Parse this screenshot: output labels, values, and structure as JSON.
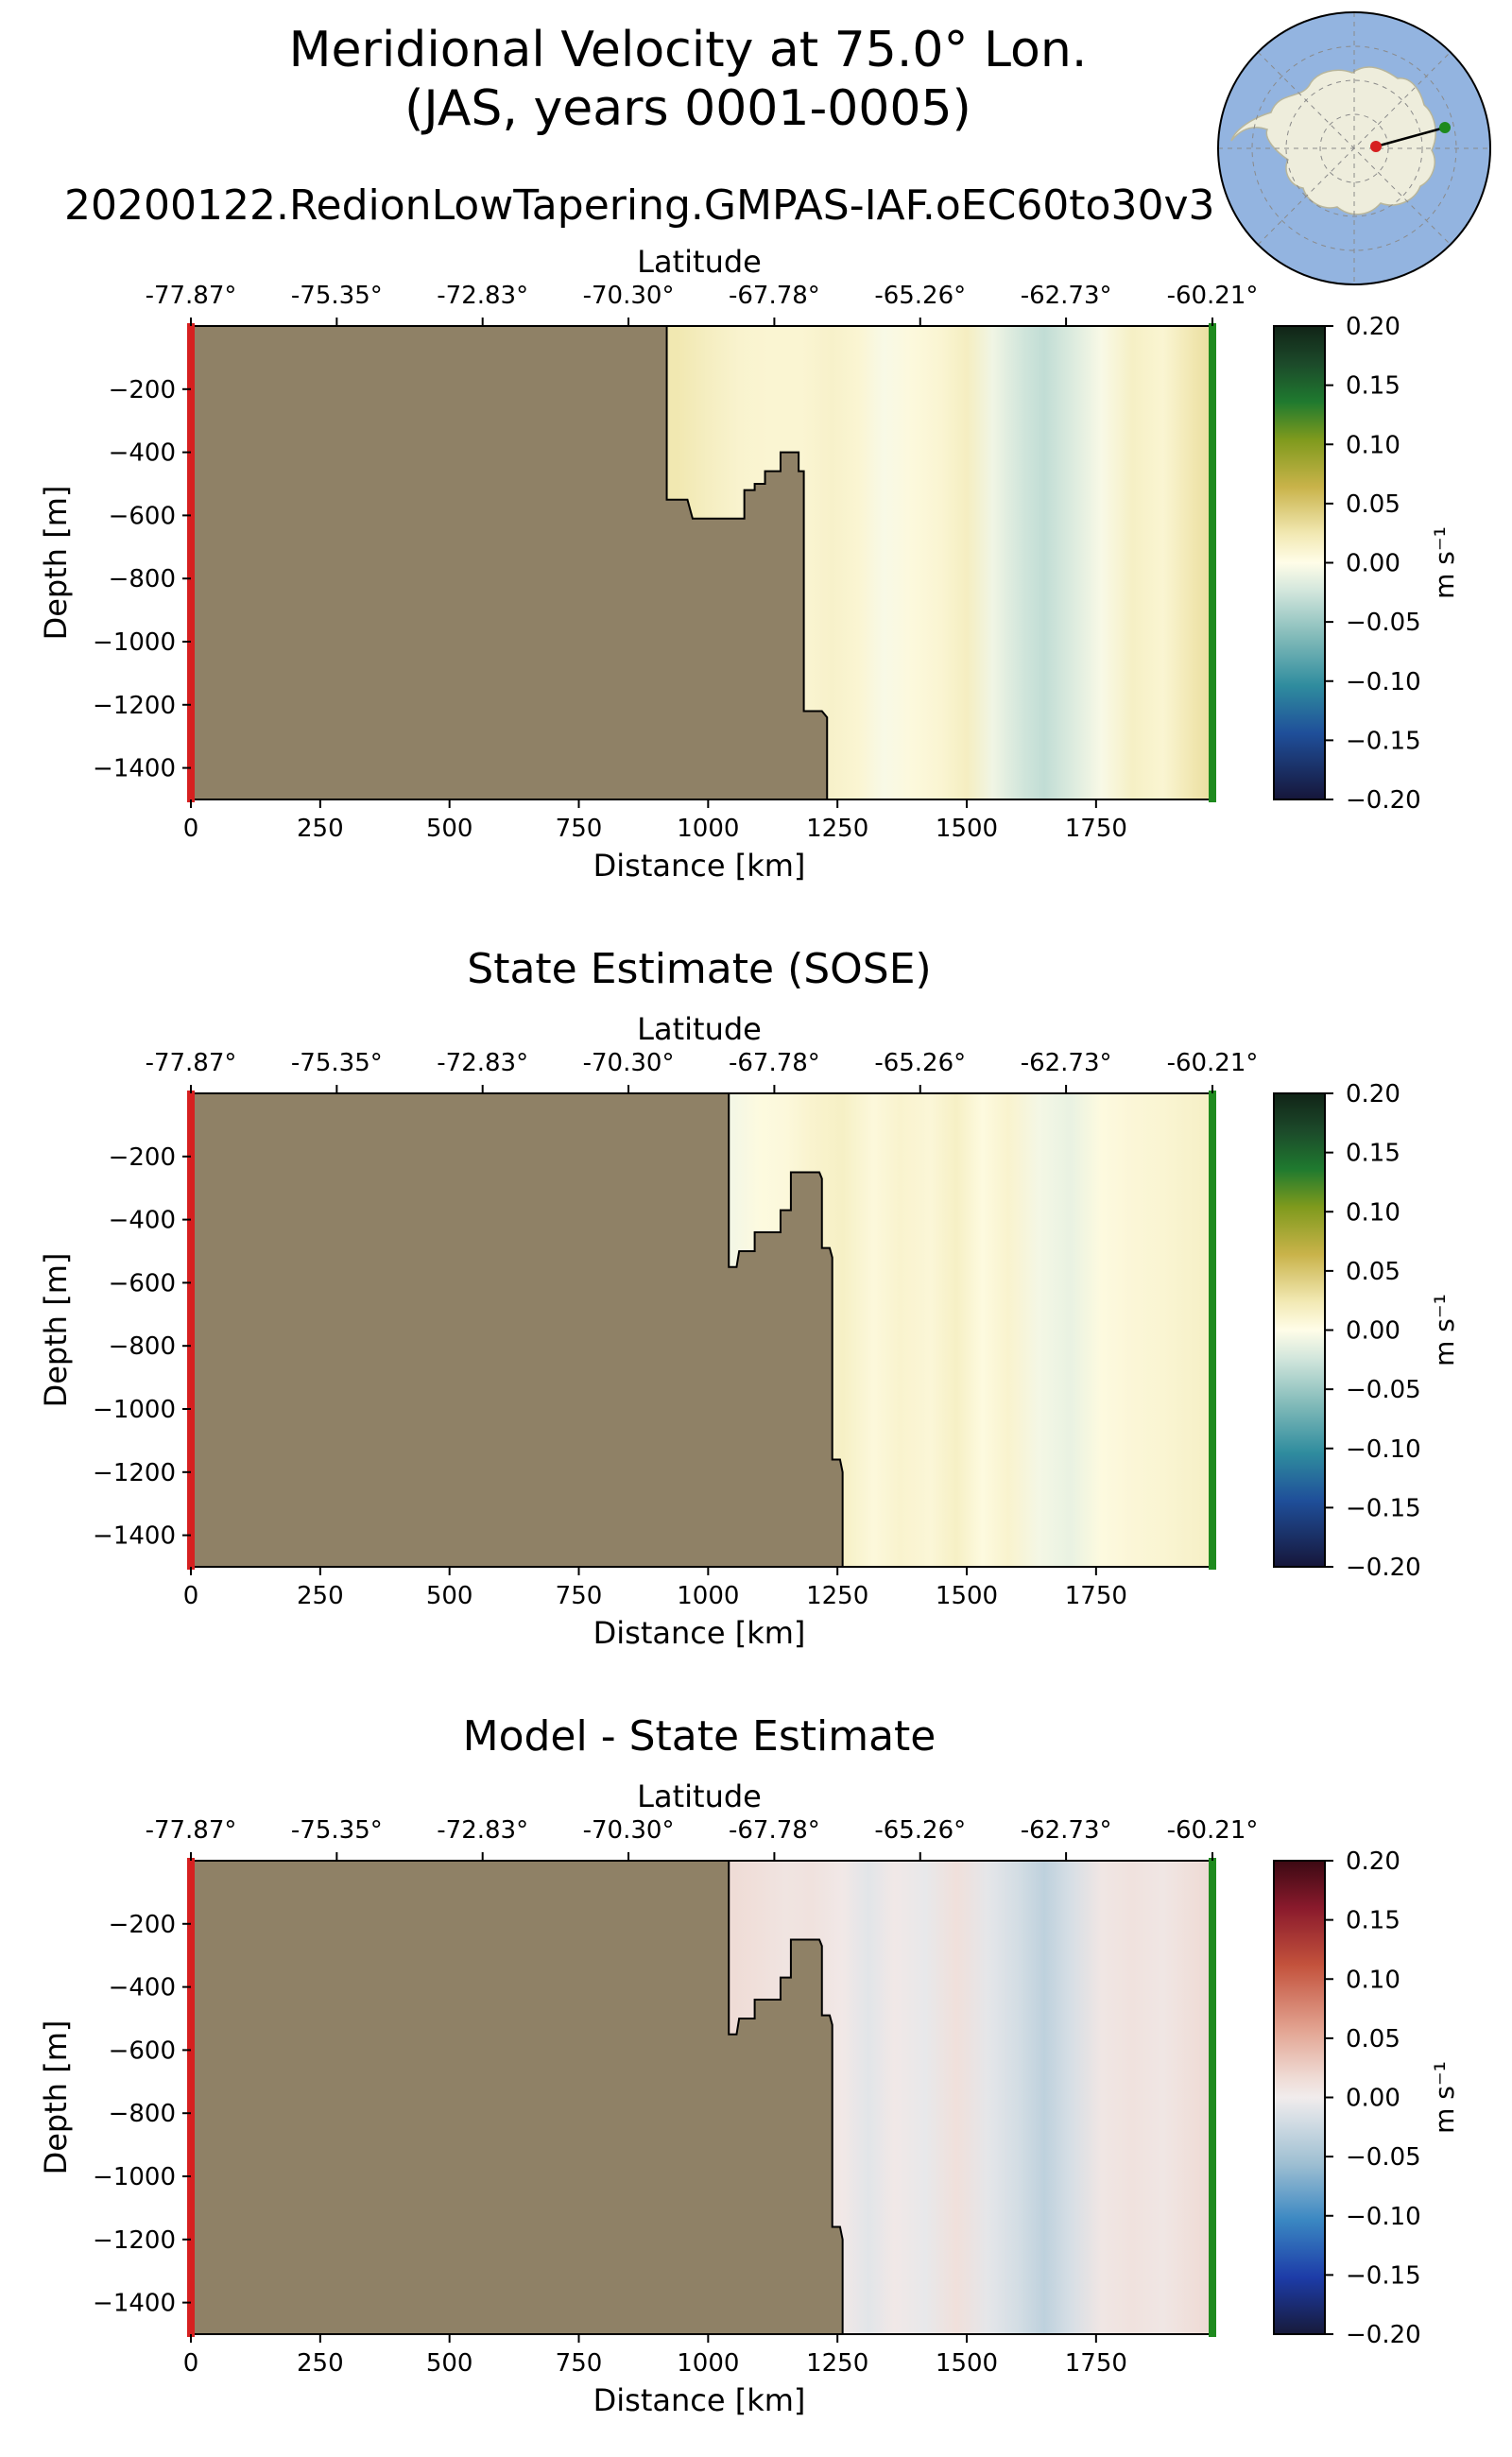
{
  "figure": {
    "title_line1": "Meridional Velocity at 75.0° Lon.",
    "title_line2": "(JAS, years 0001-0005)",
    "run_name": "20200122.RedionLowTapering.GMPAS-IAF.oEC60to30v3"
  },
  "colors": {
    "land": "#8f8166",
    "start_marker": "#d62020",
    "end_marker": "#1e8a1e",
    "map_ocean": "#93b4e0",
    "map_land": "#eeeddc"
  },
  "inset_map": {
    "description_icon": "antarctica-polar-map-icon",
    "start_point": "red",
    "end_point": "green"
  },
  "chart_data": [
    {
      "type": "heatmap",
      "title": "",
      "xlabel": "Distance [km]",
      "ylabel": "Depth [m]",
      "top_axis_label": "Latitude",
      "xlim": [
        0,
        1975
      ],
      "ylim": [
        -1500,
        0
      ],
      "xticks": [
        0,
        250,
        500,
        750,
        1000,
        1250,
        1500,
        1750
      ],
      "yticks": [
        -200,
        -400,
        -600,
        -800,
        -1000,
        -1200,
        -1400
      ],
      "top_ticks": [
        {
          "km": 0,
          "label": "-77.87°"
        },
        {
          "km": 282,
          "label": "-75.35°"
        },
        {
          "km": 564,
          "label": "-72.83°"
        },
        {
          "km": 846,
          "label": "-70.30°"
        },
        {
          "km": 1128,
          "label": "-67.78°"
        },
        {
          "km": 1410,
          "label": "-65.26°"
        },
        {
          "km": 1692,
          "label": "-62.73°"
        },
        {
          "km": 1975,
          "label": "-60.21°"
        }
      ],
      "colorbar": {
        "label": "m s⁻¹",
        "min": -0.2,
        "max": 0.2,
        "ticks": [
          "0.20",
          "0.15",
          "0.10",
          "0.05",
          "0.00",
          "−0.05",
          "−0.10",
          "−0.15",
          "−0.20"
        ],
        "colormap": "delta"
      },
      "bathymetry": [
        [
          0,
          0
        ],
        [
          920,
          0
        ],
        [
          920,
          -550
        ],
        [
          960,
          -550
        ],
        [
          970,
          -610
        ],
        [
          1070,
          -610
        ],
        [
          1070,
          -520
        ],
        [
          1090,
          -520
        ],
        [
          1090,
          -500
        ],
        [
          1110,
          -500
        ],
        [
          1110,
          -460
        ],
        [
          1140,
          -460
        ],
        [
          1140,
          -400
        ],
        [
          1175,
          -400
        ],
        [
          1175,
          -460
        ],
        [
          1185,
          -460
        ],
        [
          1185,
          -1220
        ],
        [
          1220,
          -1220
        ],
        [
          1230,
          -1240
        ],
        [
          1230,
          -1500
        ],
        [
          0,
          -1500
        ]
      ],
      "columns": [
        {
          "x": 940,
          "v": 0.025
        },
        {
          "x": 1000,
          "v": 0.018
        },
        {
          "x": 1060,
          "v": 0.012
        },
        {
          "x": 1120,
          "v": 0.01
        },
        {
          "x": 1180,
          "v": 0.01
        },
        {
          "x": 1240,
          "v": 0.014
        },
        {
          "x": 1290,
          "v": 0.01
        },
        {
          "x": 1340,
          "v": -0.004
        },
        {
          "x": 1390,
          "v": 0.005
        },
        {
          "x": 1450,
          "v": 0.01
        },
        {
          "x": 1500,
          "v": 0.018
        },
        {
          "x": 1550,
          "v": -0.008
        },
        {
          "x": 1610,
          "v": -0.025
        },
        {
          "x": 1650,
          "v": -0.032
        },
        {
          "x": 1700,
          "v": -0.02
        },
        {
          "x": 1760,
          "v": -0.004
        },
        {
          "x": 1820,
          "v": 0.016
        },
        {
          "x": 1880,
          "v": 0.01
        },
        {
          "x": 1940,
          "v": 0.026
        },
        {
          "x": 1975,
          "v": 0.032
        }
      ]
    },
    {
      "type": "heatmap",
      "title": "State Estimate (SOSE)",
      "xlabel": "Distance [km]",
      "ylabel": "Depth [m]",
      "top_axis_label": "Latitude",
      "xlim": [
        0,
        1975
      ],
      "ylim": [
        -1500,
        0
      ],
      "xticks": [
        0,
        250,
        500,
        750,
        1000,
        1250,
        1500,
        1750
      ],
      "yticks": [
        -200,
        -400,
        -600,
        -800,
        -1000,
        -1200,
        -1400
      ],
      "top_ticks": [
        {
          "km": 0,
          "label": "-77.87°"
        },
        {
          "km": 282,
          "label": "-75.35°"
        },
        {
          "km": 564,
          "label": "-72.83°"
        },
        {
          "km": 846,
          "label": "-70.30°"
        },
        {
          "km": 1128,
          "label": "-67.78°"
        },
        {
          "km": 1410,
          "label": "-65.26°"
        },
        {
          "km": 1692,
          "label": "-62.73°"
        },
        {
          "km": 1975,
          "label": "-60.21°"
        }
      ],
      "colorbar": {
        "label": "m s⁻¹",
        "min": -0.2,
        "max": 0.2,
        "ticks": [
          "0.20",
          "0.15",
          "0.10",
          "0.05",
          "0.00",
          "−0.05",
          "−0.10",
          "−0.15",
          "−0.20"
        ],
        "colormap": "delta"
      },
      "bathymetry": [
        [
          0,
          0
        ],
        [
          1040,
          0
        ],
        [
          1040,
          -550
        ],
        [
          1055,
          -550
        ],
        [
          1060,
          -500
        ],
        [
          1090,
          -500
        ],
        [
          1090,
          -440
        ],
        [
          1140,
          -440
        ],
        [
          1140,
          -370
        ],
        [
          1160,
          -370
        ],
        [
          1160,
          -250
        ],
        [
          1215,
          -250
        ],
        [
          1220,
          -270
        ],
        [
          1220,
          -490
        ],
        [
          1235,
          -490
        ],
        [
          1240,
          -520
        ],
        [
          1240,
          -1160
        ],
        [
          1255,
          -1160
        ],
        [
          1260,
          -1200
        ],
        [
          1260,
          -1500
        ],
        [
          0,
          -1500
        ]
      ],
      "columns": [
        {
          "x": 1050,
          "v": -0.006
        },
        {
          "x": 1100,
          "v": 0.004
        },
        {
          "x": 1150,
          "v": 0.006
        },
        {
          "x": 1200,
          "v": 0.012
        },
        {
          "x": 1260,
          "v": 0.016
        },
        {
          "x": 1320,
          "v": 0.006
        },
        {
          "x": 1370,
          "v": 0.012
        },
        {
          "x": 1430,
          "v": 0.008
        },
        {
          "x": 1480,
          "v": 0.016
        },
        {
          "x": 1530,
          "v": 0.004
        },
        {
          "x": 1580,
          "v": 0.012
        },
        {
          "x": 1640,
          "v": -0.006
        },
        {
          "x": 1700,
          "v": -0.012
        },
        {
          "x": 1760,
          "v": 0.004
        },
        {
          "x": 1820,
          "v": 0.008
        },
        {
          "x": 1880,
          "v": 0.01
        },
        {
          "x": 1940,
          "v": 0.014
        },
        {
          "x": 1975,
          "v": 0.016
        }
      ]
    },
    {
      "type": "heatmap",
      "title": "Model - State Estimate",
      "xlabel": "Distance [km]",
      "ylabel": "Depth [m]",
      "top_axis_label": "Latitude",
      "xlim": [
        0,
        1975
      ],
      "ylim": [
        -1500,
        0
      ],
      "xticks": [
        0,
        250,
        500,
        750,
        1000,
        1250,
        1500,
        1750
      ],
      "yticks": [
        -200,
        -400,
        -600,
        -800,
        -1000,
        -1200,
        -1400
      ],
      "top_ticks": [
        {
          "km": 0,
          "label": "-77.87°"
        },
        {
          "km": 282,
          "label": "-75.35°"
        },
        {
          "km": 564,
          "label": "-72.83°"
        },
        {
          "km": 846,
          "label": "-70.30°"
        },
        {
          "km": 1128,
          "label": "-67.78°"
        },
        {
          "km": 1410,
          "label": "-65.26°"
        },
        {
          "km": 1692,
          "label": "-62.73°"
        },
        {
          "km": 1975,
          "label": "-60.21°"
        }
      ],
      "colorbar": {
        "label": "m s⁻¹",
        "min": -0.2,
        "max": 0.2,
        "ticks": [
          "0.20",
          "0.15",
          "0.10",
          "0.05",
          "0.00",
          "−0.05",
          "−0.10",
          "−0.15",
          "−0.20"
        ],
        "colormap": "balance"
      },
      "bathymetry": [
        [
          0,
          0
        ],
        [
          1040,
          0
        ],
        [
          1040,
          -550
        ],
        [
          1055,
          -550
        ],
        [
          1060,
          -500
        ],
        [
          1090,
          -500
        ],
        [
          1090,
          -440
        ],
        [
          1140,
          -440
        ],
        [
          1140,
          -370
        ],
        [
          1160,
          -370
        ],
        [
          1160,
          -250
        ],
        [
          1215,
          -250
        ],
        [
          1220,
          -270
        ],
        [
          1220,
          -490
        ],
        [
          1235,
          -490
        ],
        [
          1240,
          -520
        ],
        [
          1240,
          -1160
        ],
        [
          1255,
          -1160
        ],
        [
          1260,
          -1200
        ],
        [
          1260,
          -1500
        ],
        [
          0,
          -1500
        ]
      ],
      "columns": [
        {
          "x": 1050,
          "v": 0.016
        },
        {
          "x": 1100,
          "v": 0.012
        },
        {
          "x": 1150,
          "v": 0.008
        },
        {
          "x": 1200,
          "v": 0.01
        },
        {
          "x": 1260,
          "v": 0.004
        },
        {
          "x": 1310,
          "v": -0.01
        },
        {
          "x": 1360,
          "v": 0.004
        },
        {
          "x": 1420,
          "v": -0.006
        },
        {
          "x": 1480,
          "v": 0.012
        },
        {
          "x": 1540,
          "v": -0.008
        },
        {
          "x": 1600,
          "v": -0.02
        },
        {
          "x": 1650,
          "v": -0.034
        },
        {
          "x": 1700,
          "v": -0.018
        },
        {
          "x": 1760,
          "v": 0.006
        },
        {
          "x": 1820,
          "v": 0.01
        },
        {
          "x": 1880,
          "v": 0.006
        },
        {
          "x": 1940,
          "v": 0.014
        },
        {
          "x": 1975,
          "v": 0.018
        }
      ]
    }
  ]
}
